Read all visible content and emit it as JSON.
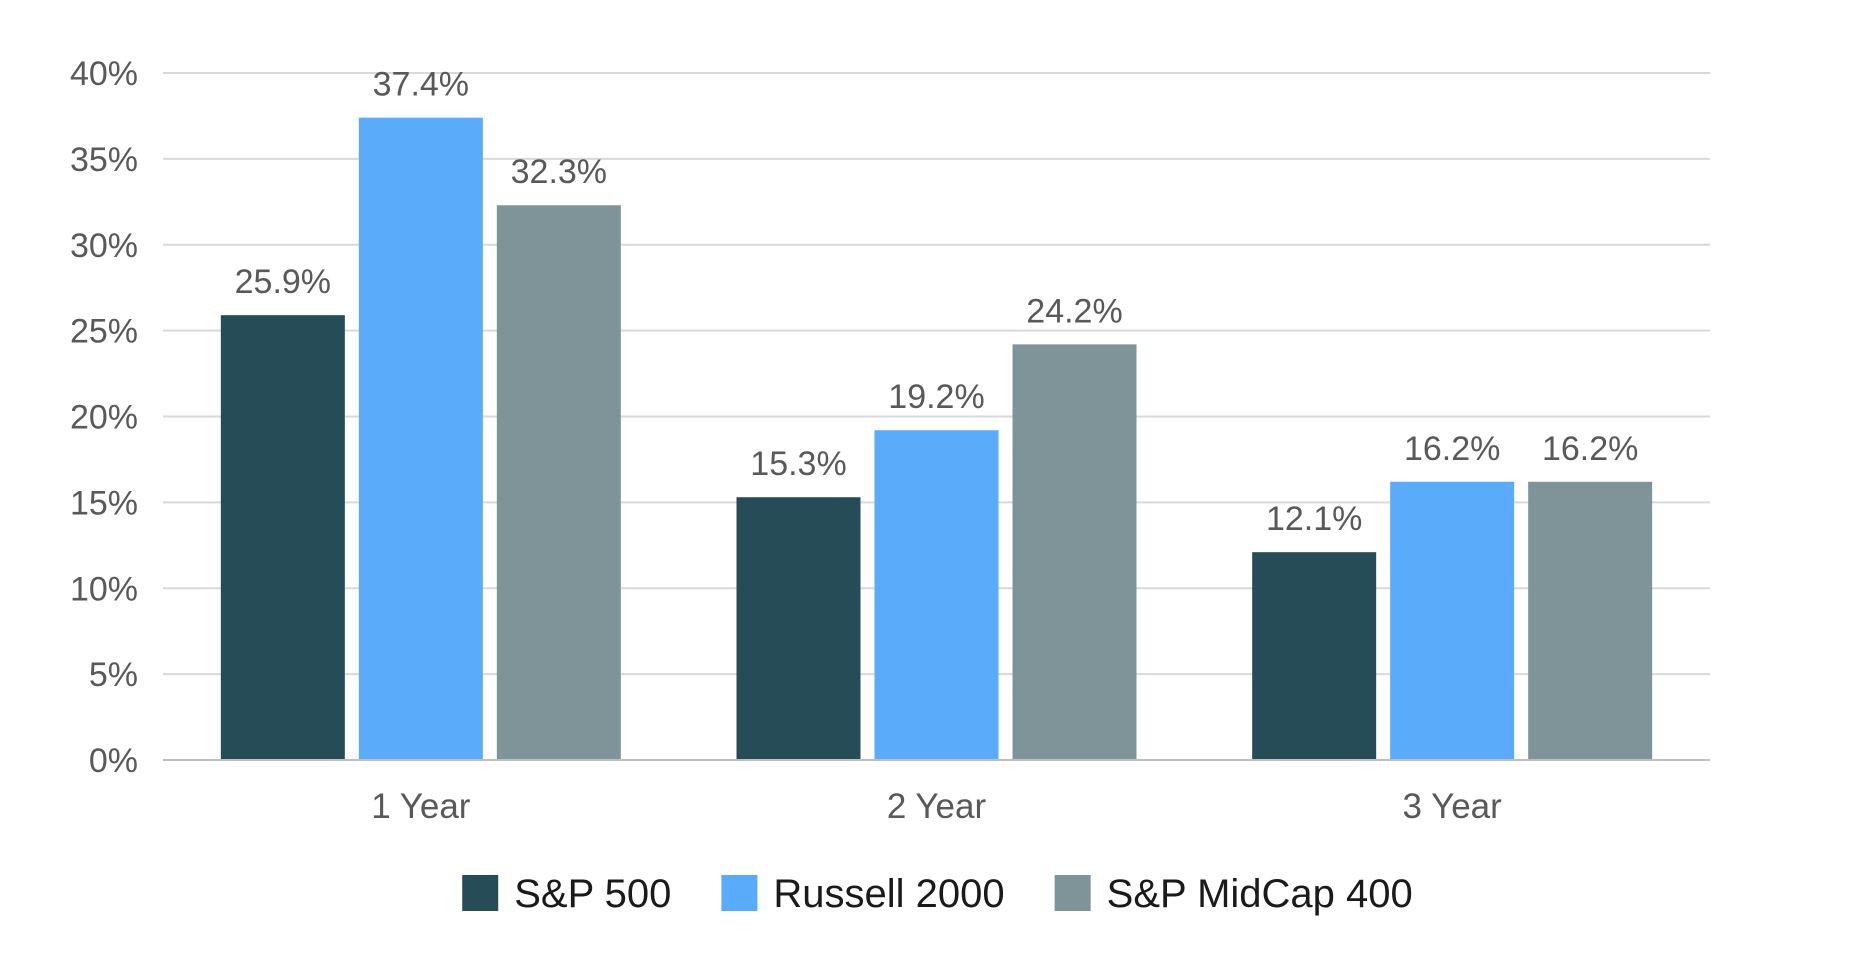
{
  "chart_data": {
    "type": "bar",
    "categories": [
      "1 Year",
      "2 Year",
      "3 Year"
    ],
    "series": [
      {
        "name": "S&P 500",
        "values": [
          25.9,
          15.3,
          12.1
        ],
        "color": "#264d57",
        "labels": [
          "25.9%",
          "15.3%",
          "12.1%"
        ]
      },
      {
        "name": "Russell 2000",
        "values": [
          37.4,
          19.2,
          16.2
        ],
        "color": "#5aabfa",
        "labels": [
          "37.4%",
          "19.2%",
          "16.2%"
        ]
      },
      {
        "name": "S&P MidCap 400",
        "values": [
          32.3,
          24.2,
          16.2
        ],
        "color": "#7f9498",
        "labels": [
          "32.3%",
          "24.2%",
          "16.2%"
        ]
      }
    ],
    "yticks": [
      {
        "value": 0,
        "label": "0%"
      },
      {
        "value": 5,
        "label": "5%"
      },
      {
        "value": 10,
        "label": "10%"
      },
      {
        "value": 15,
        "label": "15%"
      },
      {
        "value": 20,
        "label": "20%"
      },
      {
        "value": 25,
        "label": "25%"
      },
      {
        "value": 30,
        "label": "30%"
      },
      {
        "value": 35,
        "label": "35%"
      },
      {
        "value": 40,
        "label": "40%"
      }
    ],
    "ylim": [
      0,
      40
    ],
    "grid": true,
    "legend_position": "bottom",
    "title": "",
    "xlabel": "",
    "ylabel": ""
  }
}
